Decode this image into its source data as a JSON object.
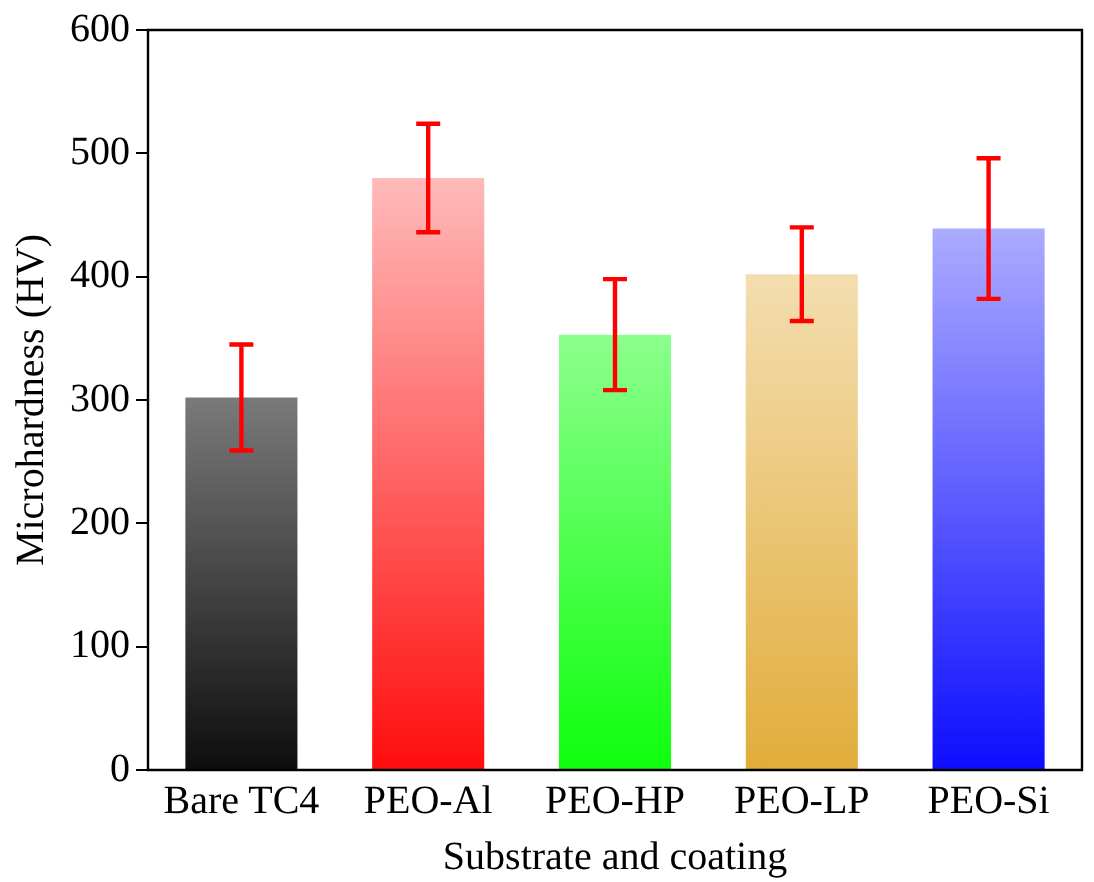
{
  "chart_data": {
    "type": "bar",
    "xlabel": "Substrate and coating",
    "ylabel": "Microhardness (HV)",
    "categories": [
      "Bare TC4",
      "PEO-Al",
      "PEO-HP",
      "PEO-LP",
      "PEO-Si"
    ],
    "values": [
      302,
      480,
      353,
      402,
      439
    ],
    "errors": [
      43,
      44,
      45,
      38,
      57
    ],
    "colors": [
      "#000000",
      "#ff0000",
      "#00ff00",
      "#e0a830",
      "#0000ff"
    ],
    "ylim": [
      0,
      600
    ],
    "yticks": [
      0,
      100,
      200,
      300,
      400,
      500,
      600
    ],
    "grid": false,
    "legend": false
  }
}
